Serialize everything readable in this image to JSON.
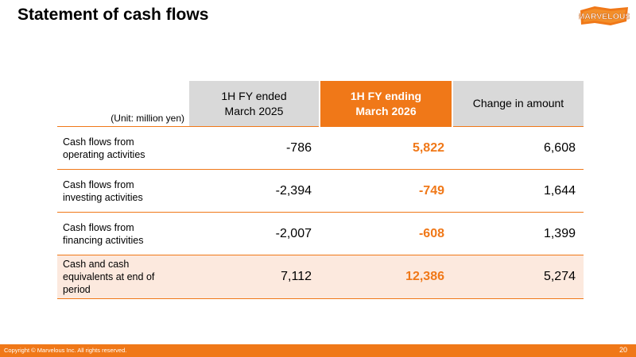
{
  "page": {
    "title": "Statement of cash flows"
  },
  "logo": {
    "text": "MARVELOUS"
  },
  "table": {
    "unit_label": "(Unit: million yen)",
    "col_prev": "1H FY ended\nMarch 2025",
    "col_cur": "1H FY ending\nMarch 2026",
    "col_change": "Change in amount",
    "rows": [
      {
        "label": "Cash flows from\noperating activities",
        "prev": "-786",
        "cur": "5,822",
        "change": "6,608"
      },
      {
        "label": "Cash flows from\ninvesting activities",
        "prev": "-2,394",
        "cur": "-749",
        "change": "1,644"
      },
      {
        "label": "Cash flows from\nfinancing activities",
        "prev": "-2,007",
        "cur": "-608",
        "change": "1,399"
      },
      {
        "label": "Cash and cash\nequivalents at end of\nperiod",
        "prev": "7,112",
        "cur": "12,386",
        "change": "5,274"
      }
    ]
  },
  "footer": {
    "copyright": "Copyright © Marvelous Inc. All rights reserved.",
    "page_number": "20"
  },
  "colors": {
    "accent": "#f07818",
    "header_gray": "#d9d9d9",
    "total_row_bg": "#fce9de"
  }
}
